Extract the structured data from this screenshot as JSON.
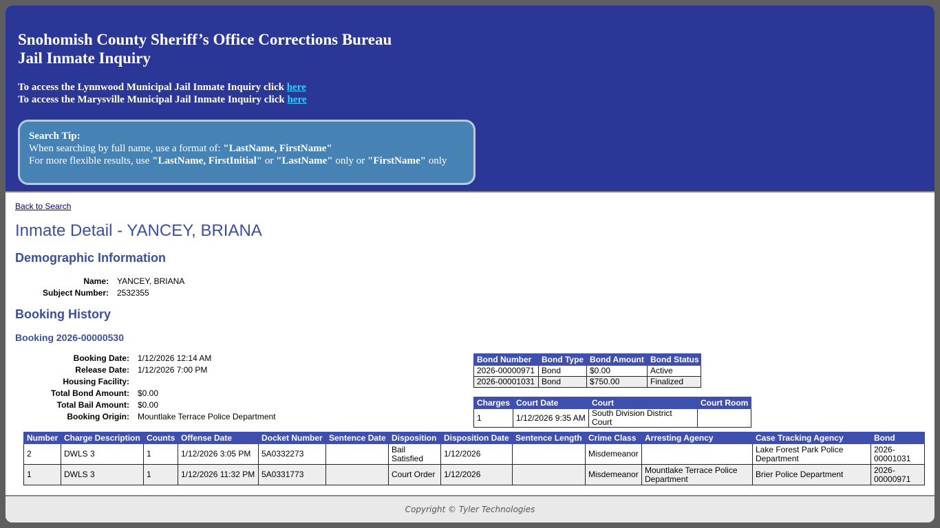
{
  "header": {
    "title_lines": [
      "Snohomish County Sheriff’s Office Corrections Bureau",
      "Jail Inmate Inquiry"
    ],
    "access_lines": [
      {
        "text": "To access the Lynnwood Municipal Jail Inmate Inquiry click",
        "link": "here"
      },
      {
        "text": "To access the Marysville Municipal Jail Inmate Inquiry click",
        "link": "here"
      }
    ]
  },
  "search_tip": {
    "title": "Search Tip:",
    "lines": [
      [
        {
          "text": "When searching by full name, use a format of: "
        },
        {
          "text": "\"LastName, FirstName\"",
          "bold": true
        }
      ],
      [
        {
          "text": "For more flexible results, use "
        },
        {
          "text": "\"LastName, FirstInitial\"",
          "bold": true
        },
        {
          "text": " or "
        },
        {
          "text": "\"LastName\"",
          "bold": true
        },
        {
          "text": " only or "
        },
        {
          "text": "\"FirstName\"",
          "bold": true
        },
        {
          "text": " only"
        }
      ]
    ]
  },
  "back_link": "Back to Search",
  "detail_title": "Inmate Detail - YANCEY, BRIANA",
  "demographic": {
    "heading": "Demographic Information",
    "fields": [
      [
        "Name:",
        "YANCEY, BRIANA"
      ],
      [
        "Subject Number:",
        "2532355"
      ]
    ]
  },
  "booking_history": {
    "heading": "Booking History",
    "booking_title": "Booking 2026-00000530",
    "fields": [
      [
        "Booking Date:",
        "1/12/2026 12:14 AM"
      ],
      [
        "Release Date:",
        "1/12/2026 7:00 PM"
      ],
      [
        "Housing Facility:",
        null
      ],
      [
        "Total Bond Amount:",
        "$0.00"
      ],
      [
        "Total Bail Amount:",
        "$0.00"
      ],
      [
        "Booking Origin:",
        "Mountlake Terrace Police Department"
      ]
    ],
    "bonds": {
      "columns": [
        "Bond Number",
        "Bond Type",
        "Bond Amount",
        "Bond Status"
      ],
      "rows": [
        [
          "2026-00000971",
          "Bond",
          "$0.00",
          "Active"
        ],
        [
          "2026-00001031",
          "Bond",
          "$750.00",
          "Finalized"
        ]
      ]
    },
    "court": {
      "columns": [
        "Charges",
        "Court Date",
        "Court",
        "Court Room"
      ],
      "rows": [
        [
          "1",
          "1/12/2026 9:35 AM",
          "South Division District Court",
          null
        ]
      ]
    },
    "charges": {
      "columns": [
        "Number",
        "Charge Description",
        "Counts",
        "Offense Date",
        "Docket Number",
        "Sentence Date",
        "Disposition",
        "Disposition Date",
        "Sentence Length",
        "Crime Class",
        "Arresting Agency",
        "Case Tracking Agency",
        "Bond"
      ],
      "rows": [
        [
          "2",
          "DWLS 3",
          "1",
          "1/12/2026 3:05 PM",
          "5A0332273",
          null,
          "Bail Satisfied",
          "1/12/2026",
          null,
          "Misdemeanor",
          null,
          "Lake Forest Park Police Department",
          "2026-00001031"
        ],
        [
          "1",
          "DWLS 3",
          "1",
          "1/12/2026 11:32 PM",
          "5A0331773",
          null,
          "Court Order",
          "1/12/2026",
          null,
          "Misdemeanor",
          "Mountlake Terrace Police Department",
          "Brier Police Department",
          "2026-00000971"
        ]
      ]
    }
  },
  "footer": "Copyright © Tyler Technologies"
}
